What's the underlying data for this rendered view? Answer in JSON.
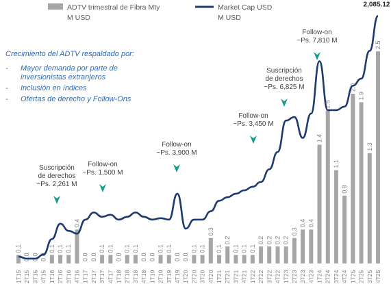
{
  "chart_data": {
    "type": "bar",
    "categories": [
      "1T15",
      "2T15",
      "3T15",
      "4T15",
      "1T16",
      "2T16",
      "3T16",
      "4T16",
      "1T17",
      "2T17",
      "3T17",
      "4T17",
      "1T18",
      "2T18",
      "3T18",
      "4T18",
      "1T19",
      "2T19",
      "3T19",
      "4T19",
      "1T20",
      "2T20",
      "3T20",
      "4T20",
      "1T21",
      "2T21",
      "3T21",
      "4T21",
      "1T22",
      "2T22",
      "3T22",
      "4T22",
      "1T23",
      "2T23",
      "3T23",
      "4T23",
      "1T24",
      "2T24",
      "3T24",
      "4T24",
      "1T25",
      "2T25",
      "3T25",
      "4T25"
    ],
    "series": [
      {
        "name": "ADTV trimestral de Fibra Mty",
        "unit": "M USD",
        "type": "bar",
        "color": "#a6a6a6",
        "values": [
          0.1,
          0,
          0,
          0,
          0.1,
          0.1,
          0.1,
          0.4,
          0,
          0,
          0.1,
          0.1,
          0,
          0.1,
          0.1,
          0,
          0,
          0.1,
          0.1,
          0,
          0,
          0.1,
          0.1,
          0.3,
          0.1,
          0.2,
          0.1,
          0.1,
          0.1,
          0.2,
          0.2,
          0.2,
          0.2,
          0.3,
          0.4,
          0.4,
          1.4,
          1.8,
          1.1,
          0.8,
          2.0,
          1.9,
          1.3,
          2.5
        ],
        "value_labels": [
          "0.1",
          "0.0",
          "0.0",
          "0.0",
          "0.1",
          "0.1",
          "0.1",
          "0.4",
          "0.0",
          "0.0",
          "0.1",
          "0.1",
          "0.0",
          "0.1",
          "0.1",
          "0.0",
          "0.0",
          "0.1",
          "0.1",
          "0.0",
          "0.0",
          "0.1",
          "0.1",
          "0.3",
          "0.1",
          "0.2",
          "0.1",
          "0.1",
          "0.1",
          "0.2",
          "0.2",
          "0.2",
          "0.2",
          "0.3",
          "0.4",
          "0.4",
          "1.4",
          "1.8",
          "1.1",
          "0.8",
          "2.0",
          "1.9",
          "1.3",
          "2.5"
        ]
      },
      {
        "name": "Market Cap USD",
        "unit": "M USD",
        "type": "line",
        "axis": "y2",
        "color": "#1f3a6e",
        "values": [
          450,
          436,
          436,
          464,
          569,
          673,
          625,
          606,
          701,
          749,
          720,
          734,
          701,
          720,
          749,
          720,
          701,
          711,
          701,
          877,
          640,
          701,
          701,
          758,
          829,
          853,
          877,
          900,
          924,
          957,
          1043,
          1161,
          1374,
          1398,
          1256,
          1422,
          1777,
          1445,
          1445,
          1469,
          1611,
          1659,
          1848,
          2085.12
        ],
        "value_labels": [
          null,
          null,
          null,
          null,
          null,
          null,
          null,
          null,
          null,
          null,
          null,
          null,
          null,
          null,
          null,
          null,
          null,
          null,
          null,
          null,
          null,
          null,
          null,
          null,
          null,
          null,
          null,
          null,
          null,
          null,
          null,
          null,
          null,
          null,
          null,
          null,
          null,
          null,
          null,
          null,
          null,
          null,
          null,
          "2,085.12"
        ]
      }
    ],
    "ylim": [
      0,
      3
    ],
    "y2lim": [
      403,
      2133
    ],
    "text_box": {
      "heading": "Crecimiento del ADTV respaldado por:",
      "bullets": [
        [
          "Mayor demanda por parte de",
          "inversionistas extranjeros"
        ],
        [
          "Inclusión en índices"
        ],
        [
          "Ofertas de derecho y Follow-Ons"
        ]
      ]
    },
    "annotations": [
      [
        "Suscripción",
        "de derechos",
        "~Ps. 2,261 M"
      ],
      [
        "Follow-on",
        "~Ps. 1,500 M"
      ],
      [
        "Follow-on",
        "~Ps. 3,900 M"
      ],
      [
        "Follow-on",
        "~Ps. 3,450 M"
      ],
      [
        "Suscripción",
        "de derechos",
        "~Ps. 6,825 M"
      ],
      [
        "Follow-on",
        "~Ps. 7,810 M"
      ]
    ]
  }
}
